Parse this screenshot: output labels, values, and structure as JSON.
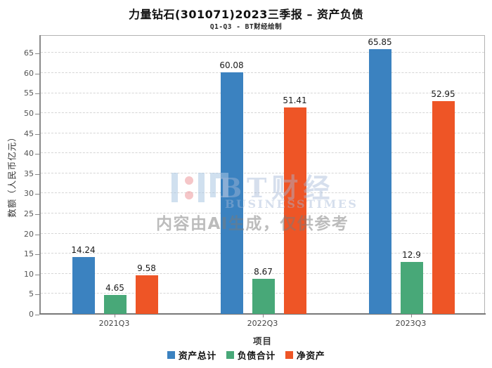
{
  "chart_data": {
    "type": "bar",
    "title": "力量钻石(301071)2023三季报 – 资产负债",
    "subtitle": "Q1-Q3 - BT财经绘制",
    "categories": [
      "2021Q3",
      "2022Q3",
      "2023Q3"
    ],
    "series": [
      {
        "name": "资产总计",
        "color": "#3b82c0",
        "values": [
          14.24,
          60.08,
          65.85
        ]
      },
      {
        "name": "负债合计",
        "color": "#48a878",
        "values": [
          4.65,
          8.67,
          12.9
        ]
      },
      {
        "name": "净资产",
        "color": "#ee5526",
        "values": [
          9.58,
          51.41,
          52.95
        ]
      }
    ],
    "xlabel": "项目",
    "ylabel": "数额（人民币亿元）",
    "ylim": [
      0,
      69.6
    ],
    "yticks": [
      0,
      5,
      10,
      15,
      20,
      25,
      30,
      35,
      40,
      45,
      50,
      55,
      60,
      65
    ],
    "grid": "horizontal-dashed",
    "legend_position": "bottom"
  },
  "watermark": {
    "brand": "BT财经",
    "brand_sub": "BUSINESSTIMES",
    "disclaimer": "内容由AI生成，仅供参考",
    "colors": {
      "logo_blue": "#aac6e2",
      "logo_red": "#ec8e92",
      "brand_text": "#c3d2e6",
      "disclaimer_text": "#b9b9b9"
    }
  }
}
